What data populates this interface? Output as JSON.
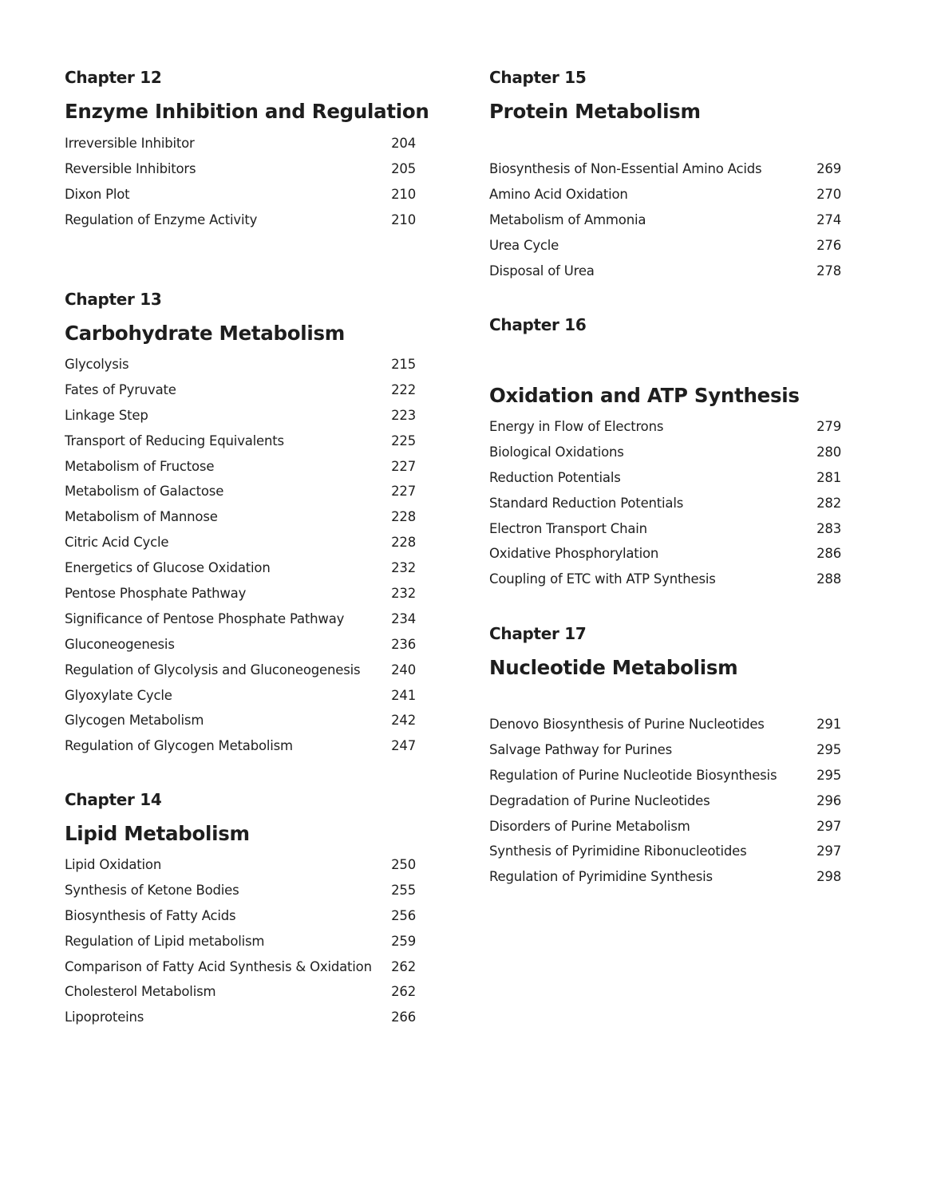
{
  "columns": [
    [
      {
        "chapter": "Chapter 12",
        "title": "Enzyme Inhibition and Regulation",
        "entries": [
          {
            "topic": "Irreversible Inhibitor",
            "page": "204"
          },
          {
            "topic": "Reversible Inhibitors",
            "page": "205"
          },
          {
            "topic": "Dixon Plot",
            "page": "210"
          },
          {
            "topic": "Regulation of Enzyme Activity",
            "page": "210"
          }
        ]
      },
      {
        "chapter": "Chapter 13",
        "title": "Carbohydrate Metabolism",
        "entries": [
          {
            "topic": "Glycolysis",
            "page": "215"
          },
          {
            "topic": "Fates of Pyruvate",
            "page": "222"
          },
          {
            "topic": "Linkage Step",
            "page": "223"
          },
          {
            "topic": "Transport of Reducing Equivalents",
            "page": "225"
          },
          {
            "topic": "Metabolism of Fructose",
            "page": "227"
          },
          {
            "topic": "Metabolism of Galactose",
            "page": "227"
          },
          {
            "topic": "Metabolism of Mannose",
            "page": "228"
          },
          {
            "topic": "Citric Acid Cycle",
            "page": "228"
          },
          {
            "topic": "Energetics of Glucose Oxidation",
            "page": "232"
          },
          {
            "topic": "Pentose Phosphate Pathway",
            "page": "232"
          },
          {
            "topic": "Significance of Pentose Phosphate Pathway",
            "page": "234"
          },
          {
            "topic": "Gluconeogenesis",
            "page": "236"
          },
          {
            "topic": "Regulation of Glycolysis and Gluconeogenesis",
            "page": "240"
          },
          {
            "topic": "Glyoxylate Cycle",
            "page": "241"
          },
          {
            "topic": "Glycogen Metabolism",
            "page": "242"
          },
          {
            "topic": "Regulation of Glycogen Metabolism",
            "page": "247"
          }
        ]
      },
      {
        "chapter": "Chapter 14",
        "title": "Lipid Metabolism",
        "entries": [
          {
            "topic": "Lipid Oxidation",
            "page": "250"
          },
          {
            "topic": "Synthesis of Ketone Bodies",
            "page": "255"
          },
          {
            "topic": "Biosynthesis of Fatty Acids",
            "page": "256"
          },
          {
            "topic": "Regulation of Lipid metabolism",
            "page": "259"
          },
          {
            "topic": "Comparison of Fatty Acid Synthesis & Oxidation",
            "page": "262"
          },
          {
            "topic": "Cholesterol Metabolism",
            "page": "262"
          },
          {
            "topic": "Lipoproteins",
            "page": "266"
          }
        ]
      }
    ],
    [
      {
        "chapter": "Chapter 15",
        "title": "Protein Metabolism",
        "entries": [
          {
            "topic": "Biosynthesis of Non-Essential Amino Acids",
            "page": "269"
          },
          {
            "topic": "Amino Acid Oxidation",
            "page": "270"
          },
          {
            "topic": "Metabolism of Ammonia",
            "page": "274"
          },
          {
            "topic": "Urea Cycle",
            "page": "276"
          },
          {
            "topic": "Disposal of Urea",
            "page": "278"
          }
        ]
      },
      {
        "chapter": "Chapter 16",
        "title": "Oxidation and ATP Synthesis",
        "entries": [
          {
            "topic": "Energy in Flow of Electrons",
            "page": "279"
          },
          {
            "topic": "Biological Oxidations",
            "page": "280"
          },
          {
            "topic": "Reduction Potentials",
            "page": "281"
          },
          {
            "topic": "Standard Reduction Potentials",
            "page": "282"
          },
          {
            "topic": "Electron Transport Chain",
            "page": "283"
          },
          {
            "topic": "Oxidative Phosphorylation",
            "page": "286"
          },
          {
            "topic": "Coupling of ETC with ATP Synthesis",
            "page": "288"
          }
        ]
      },
      {
        "chapter": "Chapter 17",
        "title": "Nucleotide Metabolism",
        "entries": [
          {
            "topic": "Denovo Biosynthesis of Purine Nucleotides",
            "page": "291"
          },
          {
            "topic": "Salvage Pathway for Purines",
            "page": "295"
          },
          {
            "topic": "Regulation of Purine Nucleotide Biosynthesis",
            "page": "295"
          },
          {
            "topic": "Degradation of Purine Nucleotides",
            "page": "296"
          },
          {
            "topic": "Disorders of Purine Metabolism",
            "page": "297"
          },
          {
            "topic": "Synthesis of Pyrimidine Ribonucleotides",
            "page": "297"
          },
          {
            "topic": "Regulation of Pyrimidine Synthesis",
            "page": "298"
          }
        ]
      }
    ]
  ]
}
